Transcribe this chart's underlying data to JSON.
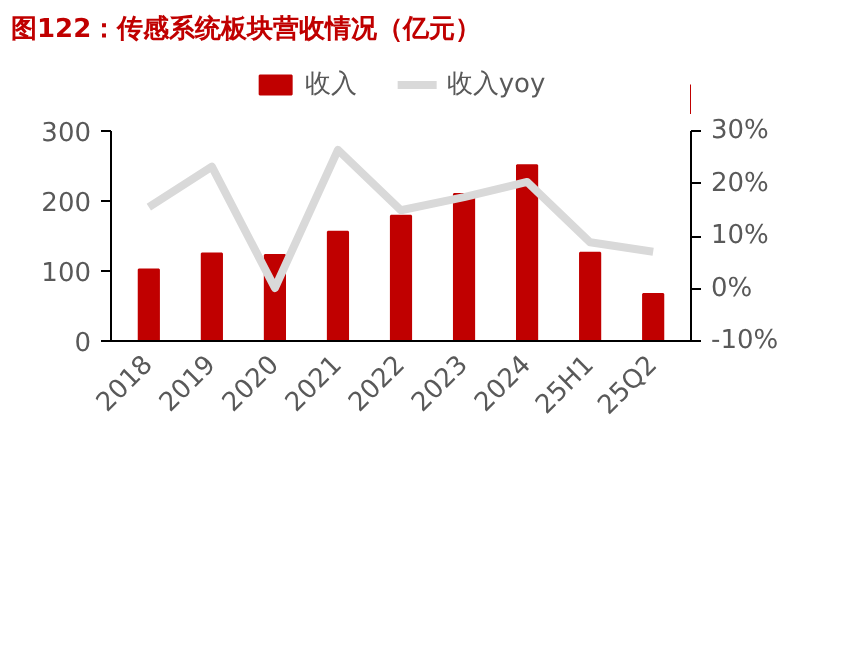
{
  "chart_data": {
    "type": "bar",
    "title": "图122：传感系统板块营收情况（亿元）",
    "categories": [
      "2018",
      "2019",
      "2020",
      "2021",
      "2022",
      "2023",
      "2024",
      "25H1",
      "25Q2"
    ],
    "series": [
      {
        "name": "收入",
        "color": "#c00000",
        "values": [
          102,
          125,
          123,
          156,
          179,
          210,
          251,
          126,
          67
        ]
      },
      {
        "name": "收入yoy",
        "type": "line",
        "axis": "y2",
        "color": "#d9d9d9",
        "values": [
          15.5,
          23.2,
          0.1,
          26.4,
          14.9,
          17.4,
          20.3,
          8.8,
          7.0
        ]
      }
    ],
    "ylim": [
      0,
      300
    ],
    "yticks": [
      0,
      100,
      200,
      300
    ],
    "y2lim": [
      -10,
      30
    ],
    "y2ticks": [
      {
        "value": -10,
        "label": "-10%"
      },
      {
        "value": 0,
        "label": "0%"
      },
      {
        "value": 10,
        "label": "10%"
      },
      {
        "value": 20,
        "label": "20%"
      },
      {
        "value": 30,
        "label": "30%"
      }
    ],
    "legend": "top",
    "grid": false
  }
}
